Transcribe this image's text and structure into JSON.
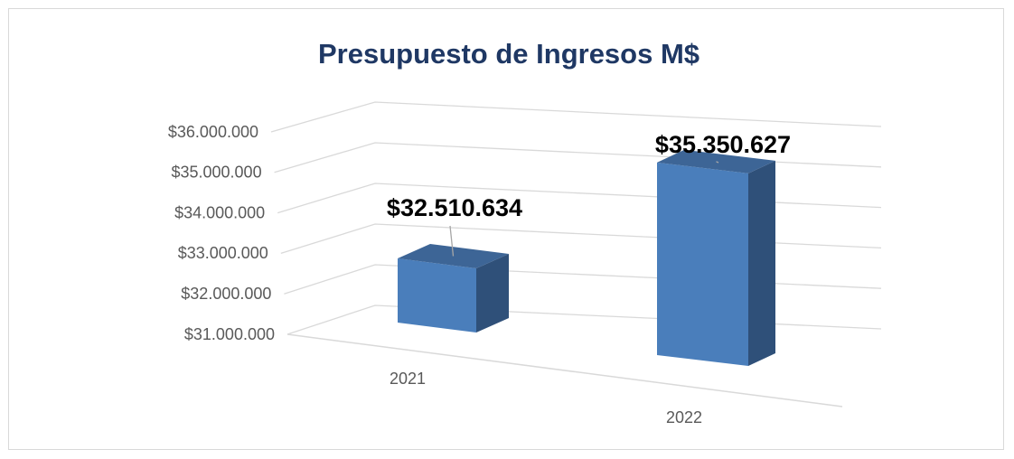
{
  "chart_data": {
    "type": "bar3d",
    "title": "Presupuesto de Ingresos M$",
    "categories": [
      "2021",
      "2022"
    ],
    "values": [
      32510634,
      35350627
    ],
    "value_labels": [
      "$32.510.634",
      "$35.350.627"
    ],
    "color": "#4a7ebb",
    "ylim": [
      31000000,
      36000000
    ],
    "yticks": [
      {
        "value": 31000000,
        "label": "$31.000.000"
      },
      {
        "value": 32000000,
        "label": "$32.000.000"
      },
      {
        "value": 33000000,
        "label": "$33.000.000"
      },
      {
        "value": 34000000,
        "label": "$34.000.000"
      },
      {
        "value": 35000000,
        "label": "$35.000.000"
      },
      {
        "value": 36000000,
        "label": "$36.000.000"
      }
    ],
    "grid": true
  }
}
